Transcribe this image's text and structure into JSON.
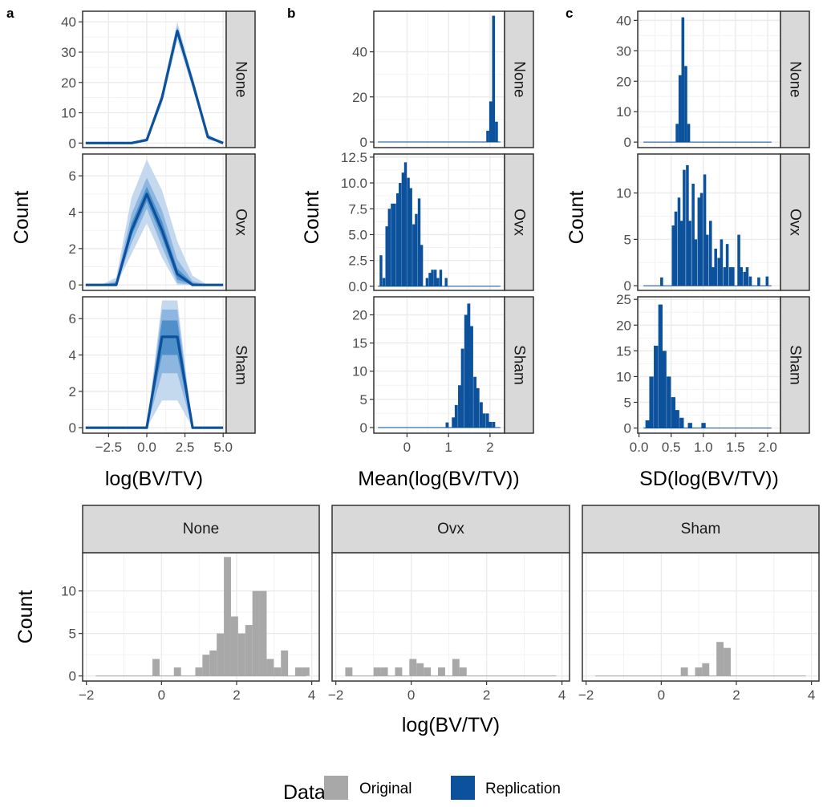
{
  "colors": {
    "original": "#a8a8a8",
    "replication": "#0b519c",
    "band_outer": "#c4d8ee",
    "band_mid": "#8db6e0",
    "band_inner": "#4f8fca",
    "strip_fill": "#d9d9d9",
    "grid_major": "#ebebeb",
    "frame": "#333333"
  },
  "legend": {
    "title": "Data",
    "entries": [
      {
        "label": "Original",
        "color": "#a8a8a8"
      },
      {
        "label": "Replication",
        "color": "#0b519c"
      }
    ]
  },
  "chart_data": [
    {
      "id": "a",
      "type": "line",
      "panel_label": "a",
      "xlabel": "log(BV/TV)",
      "ylabel": "Count",
      "xlim": [
        -4.2,
        5.2
      ],
      "xticks": [
        -2.5,
        0,
        2.5,
        5
      ],
      "xtick_labels": [
        "−2.5",
        "0.0",
        "2.5",
        "5.0"
      ],
      "x": [
        -4,
        -3,
        -2,
        -1,
        0,
        1,
        2,
        3,
        4,
        5
      ],
      "facets": [
        {
          "strip": "None",
          "ylim": [
            -1.5,
            43.5
          ],
          "yticks": [
            0,
            10,
            20,
            30,
            40
          ],
          "ytick_labels": [
            "0",
            "10",
            "20",
            "30",
            "40"
          ],
          "median": [
            0,
            0,
            0,
            0,
            1,
            15,
            37,
            20,
            2,
            0
          ],
          "bands": [
            {
              "level": "outer",
              "lo": [
                0,
                0,
                0,
                0,
                0.5,
                13,
                34,
                18,
                1,
                0
              ],
              "hi": [
                0,
                0,
                0,
                0,
                1.8,
                17,
                40,
                22,
                3,
                0
              ]
            },
            {
              "level": "mid",
              "lo": [
                0,
                0,
                0,
                0,
                0.7,
                14,
                35.5,
                19,
                1.5,
                0
              ],
              "hi": [
                0,
                0,
                0,
                0,
                1.4,
                16,
                38.5,
                21,
                2.5,
                0
              ]
            }
          ]
        },
        {
          "strip": "Ovx",
          "ylim": [
            -0.3,
            7.2
          ],
          "yticks": [
            0,
            2,
            4,
            6
          ],
          "ytick_labels": [
            "0",
            "2",
            "4",
            "6"
          ],
          "median": [
            0,
            0,
            0,
            3,
            5,
            3,
            0.6,
            0,
            0,
            0
          ],
          "bands": [
            {
              "level": "outer",
              "lo": [
                0,
                0,
                0,
                1.7,
                3.4,
                1.5,
                0,
                0,
                0,
                0
              ],
              "hi": [
                0,
                0,
                0.4,
                4.8,
                6.9,
                5.2,
                2.4,
                0.5,
                0,
                0
              ]
            },
            {
              "level": "mid",
              "lo": [
                0,
                0,
                0,
                2.3,
                4.2,
                2.1,
                0.1,
                0,
                0,
                0
              ],
              "hi": [
                0,
                0,
                0.2,
                3.9,
                5.9,
                4.1,
                1.4,
                0.2,
                0,
                0
              ]
            },
            {
              "level": "inner",
              "lo": [
                0,
                0,
                0,
                2.7,
                4.6,
                2.6,
                0.3,
                0,
                0,
                0
              ],
              "hi": [
                0,
                0,
                0.1,
                3.4,
                5.4,
                3.5,
                0.9,
                0.1,
                0,
                0
              ]
            }
          ]
        },
        {
          "strip": "Sham",
          "ylim": [
            -0.3,
            7.2
          ],
          "yticks": [
            0,
            2,
            4,
            6
          ],
          "ytick_labels": [
            "0",
            "2",
            "4",
            "6"
          ],
          "median": [
            0,
            0,
            0,
            0,
            0,
            5,
            5,
            0,
            0,
            0
          ],
          "bands": [
            {
              "level": "outer",
              "lo": [
                0,
                0,
                0,
                0,
                0,
                1.5,
                1.5,
                0,
                0,
                0
              ],
              "hi": [
                0,
                0,
                0,
                0,
                0,
                7,
                7,
                0,
                0,
                0
              ]
            },
            {
              "level": "mid",
              "lo": [
                0,
                0,
                0,
                0,
                0,
                3,
                3,
                0,
                0,
                0
              ],
              "hi": [
                0,
                0,
                0,
                0,
                0,
                6.5,
                6.5,
                0,
                0,
                0
              ]
            },
            {
              "level": "inner",
              "lo": [
                0,
                0,
                0,
                0,
                0,
                4,
                4,
                0,
                0,
                0
              ],
              "hi": [
                0,
                0,
                0,
                0,
                0,
                5.9,
                5.9,
                0,
                0,
                0
              ]
            }
          ]
        }
      ]
    },
    {
      "id": "b",
      "type": "bar",
      "panel_label": "b",
      "xlabel": "Mean(log(BV/TV))",
      "ylabel": "Count",
      "xlim": [
        -0.8,
        2.35
      ],
      "xticks": [
        0,
        1,
        2
      ],
      "xtick_labels": [
        "0",
        "1",
        "2"
      ],
      "baseline_range": [
        -0.7,
        2.25
      ],
      "facets": [
        {
          "strip": "None",
          "ylim": [
            -2.5,
            58
          ],
          "yticks": [
            0,
            20,
            40
          ],
          "ytick_labels": [
            "0",
            "20",
            "40"
          ],
          "bin_width": 0.07,
          "bins": [
            [
              1.91,
              5
            ],
            [
              1.98,
              18
            ],
            [
              2.05,
              56
            ],
            [
              2.12,
              9
            ]
          ]
        },
        {
          "strip": "Ovx",
          "ylim": [
            -0.4,
            12.8
          ],
          "yticks": [
            0,
            2.5,
            5,
            7.5,
            10,
            12.5
          ],
          "ytick_labels": [
            "0.0",
            "2.5",
            "5.0",
            "7.5",
            "10.0",
            "12.5"
          ],
          "bin_width": 0.0655,
          "bins": [
            [
              -0.66,
              3
            ],
            [
              -0.59,
              0.8
            ],
            [
              -0.52,
              5.8
            ],
            [
              -0.46,
              7.5
            ],
            [
              -0.39,
              8
            ],
            [
              -0.33,
              8
            ],
            [
              -0.26,
              9
            ],
            [
              -0.2,
              10
            ],
            [
              -0.13,
              11
            ],
            [
              -0.07,
              12
            ],
            [
              0,
              10.5
            ],
            [
              0.06,
              9.5
            ],
            [
              0.13,
              6
            ],
            [
              0.19,
              7
            ],
            [
              0.26,
              8.5
            ],
            [
              0.32,
              4
            ],
            [
              0.45,
              0.8
            ],
            [
              0.52,
              1.3
            ],
            [
              0.58,
              1.6
            ],
            [
              0.65,
              1.6
            ],
            [
              0.71,
              0.8
            ],
            [
              0.78,
              1.6
            ],
            [
              0.91,
              0.8
            ]
          ]
        },
        {
          "strip": "Sham",
          "ylim": [
            -1,
            23.2
          ],
          "yticks": [
            0,
            5,
            10,
            15,
            20
          ],
          "ytick_labels": [
            "0",
            "5",
            "10",
            "15",
            "20"
          ],
          "bin_width": 0.0744,
          "bins": [
            [
              0.93,
              0.9
            ],
            [
              1.08,
              1.8
            ],
            [
              1.15,
              4
            ],
            [
              1.23,
              7.5
            ],
            [
              1.3,
              14
            ],
            [
              1.38,
              20
            ],
            [
              1.45,
              22
            ],
            [
              1.52,
              18
            ],
            [
              1.6,
              9
            ],
            [
              1.67,
              7
            ],
            [
              1.75,
              4.5
            ],
            [
              1.82,
              2.5
            ],
            [
              1.9,
              2.5
            ],
            [
              1.97,
              1
            ],
            [
              2.05,
              1
            ]
          ]
        }
      ]
    },
    {
      "id": "c",
      "type": "bar",
      "panel_label": "c",
      "xlabel": "SD(log(BV/TV))",
      "ylabel": "Count",
      "xlim": [
        -0.02,
        2.2
      ],
      "xticks": [
        0,
        0.5,
        1,
        1.5,
        2
      ],
      "xtick_labels": [
        "0.0",
        "0.5",
        "1.0",
        "1.5",
        "2.0"
      ],
      "baseline_range": [
        0.07,
        2.06
      ],
      "facets": [
        {
          "strip": "None",
          "ylim": [
            -1.8,
            43
          ],
          "yticks": [
            0,
            10,
            20,
            30,
            40
          ],
          "ytick_labels": [
            "0",
            "10",
            "20",
            "30",
            "40"
          ],
          "bin_width": 0.045,
          "bins": [
            [
              0.57,
              6
            ],
            [
              0.615,
              22
            ],
            [
              0.66,
              41
            ],
            [
              0.705,
              25
            ],
            [
              0.75,
              6
            ]
          ]
        },
        {
          "strip": "Ovx",
          "ylim": [
            -0.5,
            14.2
          ],
          "yticks": [
            0,
            5,
            10
          ],
          "ytick_labels": [
            "0",
            "5",
            "10"
          ],
          "bin_width": 0.0444,
          "bins": [
            [
              0.33,
              0.9
            ],
            [
              0.51,
              6.5
            ],
            [
              0.55,
              8
            ],
            [
              0.6,
              9.5
            ],
            [
              0.64,
              7
            ],
            [
              0.68,
              12.5
            ],
            [
              0.73,
              13
            ],
            [
              0.77,
              7
            ],
            [
              0.82,
              11
            ],
            [
              0.86,
              5
            ],
            [
              0.91,
              9.5
            ],
            [
              0.95,
              10
            ],
            [
              1,
              12
            ],
            [
              1.04,
              5.5
            ],
            [
              1.09,
              7
            ],
            [
              1.13,
              2
            ],
            [
              1.17,
              4
            ],
            [
              1.22,
              3
            ],
            [
              1.26,
              5
            ],
            [
              1.31,
              2
            ],
            [
              1.35,
              4.5
            ],
            [
              1.4,
              2
            ],
            [
              1.44,
              2
            ],
            [
              1.53,
              5.5
            ],
            [
              1.57,
              2
            ],
            [
              1.62,
              1.5
            ],
            [
              1.66,
              2
            ],
            [
              1.71,
              1
            ],
            [
              1.84,
              0.9
            ],
            [
              1.97,
              1
            ]
          ]
        },
        {
          "strip": "Sham",
          "ylim": [
            -1,
            25.5
          ],
          "yticks": [
            0,
            5,
            10,
            15,
            20,
            25
          ],
          "ytick_labels": [
            "0",
            "5",
            "10",
            "15",
            "20",
            "25"
          ],
          "bin_width": 0.0667,
          "bins": [
            [
              0.1,
              1.5
            ],
            [
              0.16,
              10
            ],
            [
              0.23,
              16
            ],
            [
              0.3,
              24
            ],
            [
              0.36,
              15
            ],
            [
              0.43,
              10
            ],
            [
              0.5,
              6
            ],
            [
              0.56,
              3.5
            ],
            [
              0.63,
              2
            ],
            [
              0.76,
              1
            ],
            [
              0.97,
              1
            ]
          ]
        }
      ]
    },
    {
      "id": "d",
      "type": "bar",
      "panel_label": "",
      "xlabel": "log(BV/TV)",
      "ylabel": "Count",
      "xlim": [
        -2.1,
        4.2
      ],
      "xticks": [
        -2,
        0,
        2,
        4
      ],
      "xtick_labels": [
        "−2",
        "0",
        "2",
        "4"
      ],
      "ylim": [
        -0.6,
        14.5
      ],
      "yticks": [
        0,
        5,
        10
      ],
      "ytick_labels": [
        "0",
        "5",
        "10"
      ],
      "baseline_range": [
        -1.75,
        3.85
      ],
      "bin_width": 0.19,
      "facets": [
        {
          "strip": "None",
          "bins": [
            [
              -0.24,
              2
            ],
            [
              0.33,
              1
            ],
            [
              0.9,
              1
            ],
            [
              1.09,
              2.5
            ],
            [
              1.28,
              3
            ],
            [
              1.47,
              5
            ],
            [
              1.66,
              14
            ],
            [
              1.85,
              7
            ],
            [
              2.04,
              5
            ],
            [
              2.23,
              6
            ],
            [
              2.42,
              10
            ],
            [
              2.61,
              10
            ],
            [
              2.8,
              2
            ],
            [
              2.99,
              1
            ],
            [
              3.18,
              3
            ],
            [
              3.56,
              1
            ],
            [
              3.75,
              1
            ]
          ]
        },
        {
          "strip": "Ovx",
          "bins": [
            [
              -1.75,
              1
            ],
            [
              -1.0,
              1
            ],
            [
              -0.81,
              1
            ],
            [
              -0.43,
              1
            ],
            [
              -0.05,
              2
            ],
            [
              0.14,
              1.5
            ],
            [
              0.33,
              1
            ],
            [
              0.71,
              1
            ],
            [
              1.09,
              2
            ],
            [
              1.28,
              1
            ]
          ]
        },
        {
          "strip": "Sham",
          "bins": [
            [
              0.52,
              1
            ],
            [
              0.9,
              1
            ],
            [
              1.09,
              1.5
            ],
            [
              1.47,
              4
            ],
            [
              1.66,
              3.3
            ]
          ]
        }
      ]
    }
  ]
}
